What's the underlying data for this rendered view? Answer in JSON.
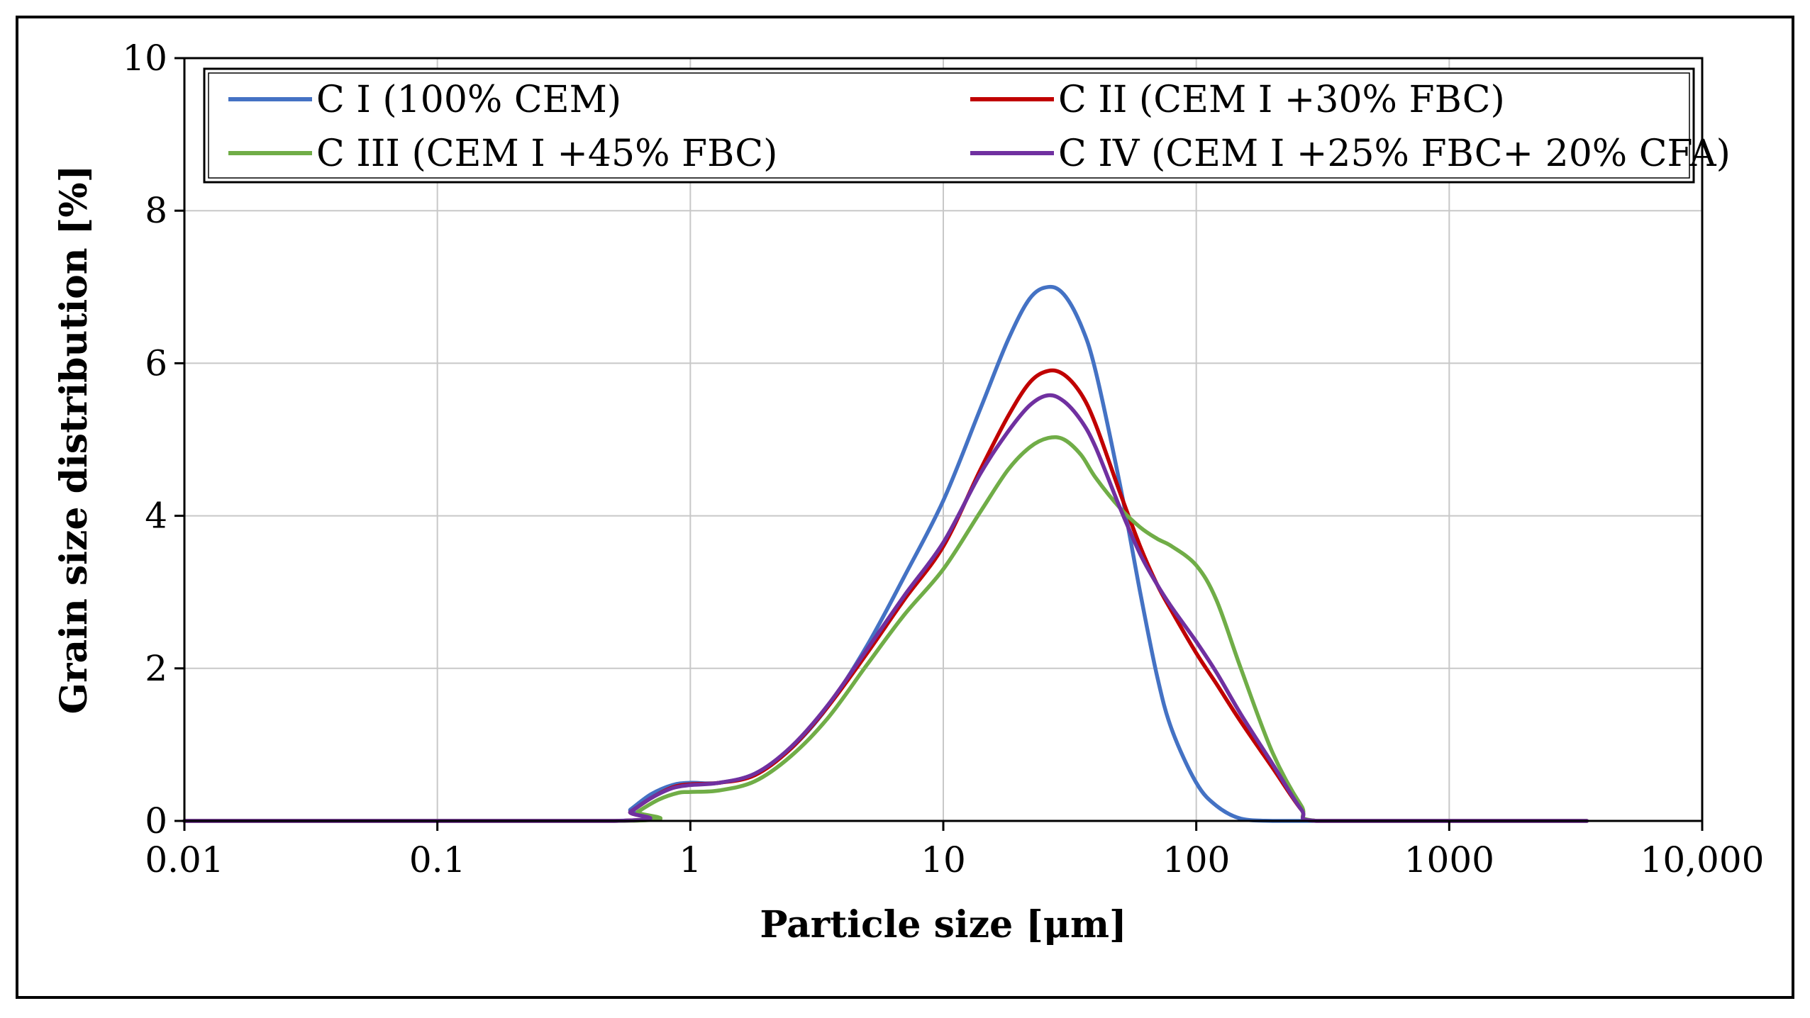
{
  "chart_data": {
    "type": "line",
    "title": "",
    "xlabel": "Particle size [μm]",
    "ylabel": "Grain size distribution [%]",
    "x_scale": "log",
    "xlim": [
      0.01,
      10000
    ],
    "ylim": [
      0,
      10
    ],
    "grid": true,
    "legend_position": "top",
    "x_tick_values": [
      0.01,
      0.1,
      1,
      10,
      100,
      1000,
      10000
    ],
    "x_tick_labels": [
      "0.01",
      "0.1",
      "1",
      "10",
      "100",
      "1000",
      "10,000"
    ],
    "y_tick_values": [
      0,
      2,
      4,
      6,
      8,
      10
    ],
    "y_tick_labels": [
      "0",
      "2",
      "4",
      "6",
      "8",
      "10"
    ],
    "series": [
      {
        "name": "C I (100% CEM)",
        "color": "#4472C4",
        "x": [
          0.01,
          0.5,
          0.58,
          0.7,
          0.85,
          1.0,
          1.3,
          1.8,
          2.5,
          3.5,
          5,
          7,
          10,
          14,
          18,
          22,
          26,
          30,
          35,
          40,
          50,
          60,
          70,
          80,
          100,
          120,
          150,
          200,
          300,
          1000,
          3500
        ],
        "y": [
          0,
          0,
          0.15,
          0.35,
          0.47,
          0.5,
          0.5,
          0.62,
          0.95,
          1.5,
          2.3,
          3.2,
          4.2,
          5.4,
          6.3,
          6.85,
          7.0,
          6.9,
          6.5,
          5.9,
          4.4,
          3.0,
          1.9,
          1.2,
          0.5,
          0.2,
          0.03,
          0,
          0,
          0,
          0
        ]
      },
      {
        "name": "C II (CEM I +30% FBC)",
        "color": "#C00000",
        "x": [
          0.01,
          0.5,
          0.58,
          0.7,
          0.85,
          1.0,
          1.3,
          1.8,
          2.5,
          3.5,
          5,
          7,
          10,
          14,
          18,
          22,
          26,
          30,
          35,
          40,
          50,
          60,
          70,
          80,
          100,
          120,
          150,
          200,
          260,
          300,
          1000,
          3500
        ],
        "y": [
          0,
          0,
          0.12,
          0.3,
          0.44,
          0.48,
          0.5,
          0.6,
          0.95,
          1.5,
          2.2,
          2.9,
          3.6,
          4.6,
          5.3,
          5.75,
          5.9,
          5.85,
          5.6,
          5.2,
          4.3,
          3.6,
          3.1,
          2.75,
          2.2,
          1.8,
          1.3,
          0.7,
          0.15,
          0,
          0,
          0
        ]
      },
      {
        "name": "C III (CEM I +45% FBC)",
        "color": "#70AD47",
        "x": [
          0.01,
          0.55,
          0.62,
          0.75,
          0.9,
          1.0,
          1.3,
          1.8,
          2.5,
          3.5,
          5,
          7,
          10,
          14,
          18,
          22,
          26,
          30,
          35,
          40,
          50,
          60,
          70,
          80,
          100,
          120,
          150,
          200,
          260,
          300,
          1000,
          3500
        ],
        "y": [
          0,
          0,
          0.12,
          0.28,
          0.37,
          0.38,
          0.4,
          0.52,
          0.85,
          1.35,
          2.05,
          2.7,
          3.3,
          4.05,
          4.6,
          4.9,
          5.02,
          5.0,
          4.8,
          4.5,
          4.1,
          3.85,
          3.7,
          3.6,
          3.35,
          2.9,
          2.0,
          0.9,
          0.2,
          0,
          0,
          0
        ]
      },
      {
        "name": "C IV (CEM I +25% FBC+ 20% CFA)",
        "color": "#7030A0",
        "x": [
          0.01,
          0.5,
          0.58,
          0.7,
          0.85,
          1.0,
          1.3,
          1.8,
          2.5,
          3.5,
          5,
          7,
          10,
          14,
          18,
          22,
          26,
          30,
          35,
          40,
          50,
          60,
          70,
          80,
          100,
          120,
          150,
          200,
          260,
          300,
          1000,
          3500
        ],
        "y": [
          0,
          0,
          0.12,
          0.3,
          0.43,
          0.47,
          0.5,
          0.62,
          0.97,
          1.52,
          2.25,
          2.95,
          3.65,
          4.55,
          5.1,
          5.45,
          5.58,
          5.5,
          5.25,
          4.9,
          4.1,
          3.5,
          3.1,
          2.8,
          2.35,
          1.95,
          1.4,
          0.75,
          0.15,
          0,
          0,
          0
        ]
      }
    ]
  }
}
